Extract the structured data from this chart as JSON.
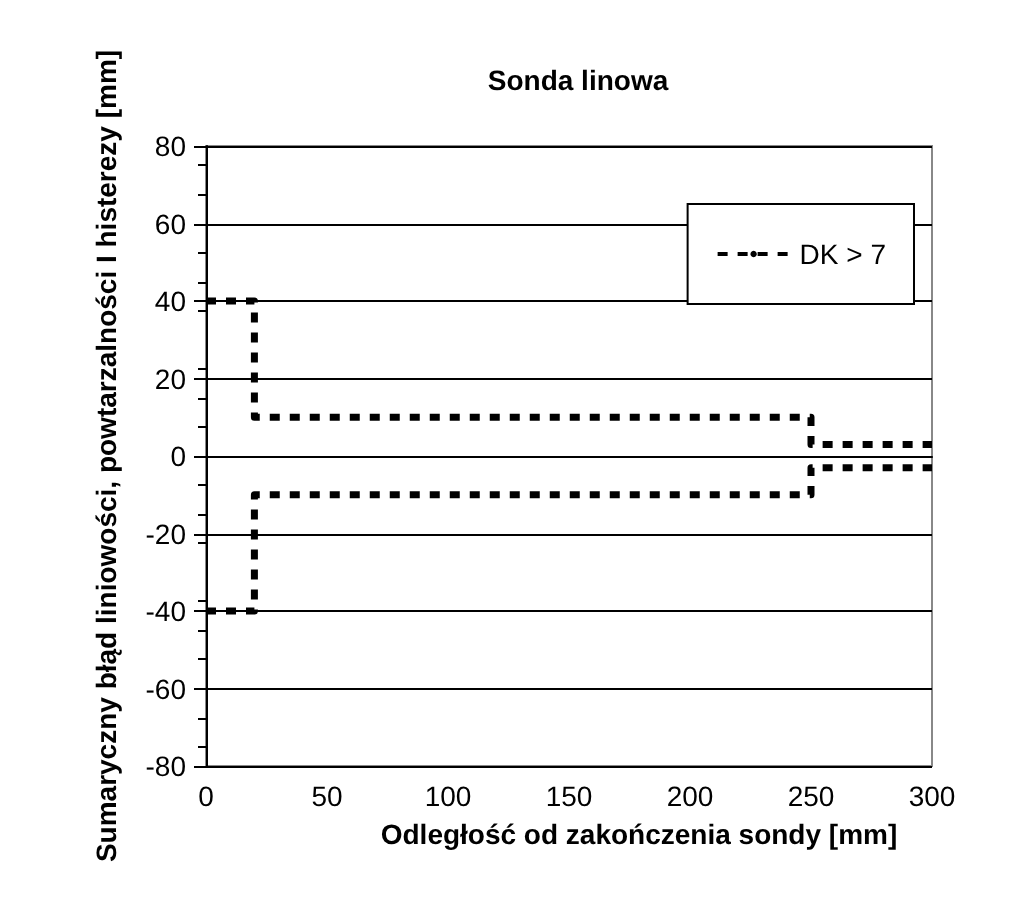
{
  "chart_data": {
    "type": "step",
    "title": "Sonda linowa",
    "xlabel": "Odległość od zakończenia sondy [mm]",
    "ylabel": "Sumaryczny błąd liniowości, powtarzalności I histerezy [mm]",
    "series": [
      {
        "name": "DK > 7",
        "color": "#000000",
        "x": [
          0,
          20,
          250,
          300
        ],
        "values": [
          40,
          10,
          3,
          3
        ]
      },
      {
        "color": "#000000",
        "x": [
          0,
          20,
          250,
          300
        ],
        "values": [
          -40,
          -10,
          -3,
          -3
        ]
      }
    ],
    "xlim": [
      0,
      300
    ],
    "xticks": [
      0,
      50,
      100,
      150,
      200,
      250,
      300
    ],
    "ylim": [
      -80,
      80
    ],
    "yticks": [
      -80,
      -60,
      -40,
      -20,
      0,
      20,
      40,
      60,
      80
    ],
    "grid": "y",
    "legend": "top right",
    "marker": "none",
    "line_style": "dashed"
  }
}
